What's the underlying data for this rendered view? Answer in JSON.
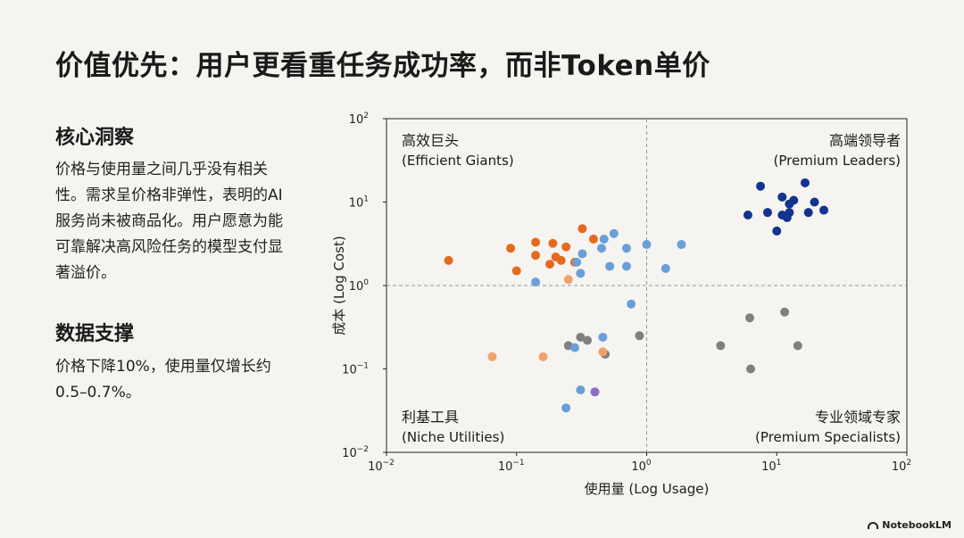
{
  "title": "价值优先：用户更看重任务成功率，而非Token单价",
  "insight": {
    "heading": "核心洞察",
    "body": "价格与使用量之间几乎没有相关性。需求呈价格非弹性，表明的AI服务尚未被商品化。用户愿意为能可靠解决高风险任务的模型支付显著溢价。"
  },
  "support": {
    "heading": "数据支撑",
    "body": "价格下降10%，使用量仅增长约0.5–0.7%。"
  },
  "brand": "NotebookLM",
  "chart_data": {
    "type": "scatter",
    "xlabel": "使用量 (Log Usage)",
    "ylabel": "成本 (Log Cost)",
    "xscale": "log",
    "yscale": "log",
    "xlim": [
      0.01,
      100
    ],
    "ylim": [
      0.01,
      100
    ],
    "x_ticks": [
      {
        "base": "10",
        "exp": "−2"
      },
      {
        "base": "10",
        "exp": "−1"
      },
      {
        "base": "10",
        "exp": "0"
      },
      {
        "base": "10",
        "exp": "1"
      },
      {
        "base": "10",
        "exp": "2"
      }
    ],
    "y_ticks": [
      {
        "base": "10",
        "exp": "−2"
      },
      {
        "base": "10",
        "exp": "−1"
      },
      {
        "base": "10",
        "exp": "0"
      },
      {
        "base": "10",
        "exp": "1"
      },
      {
        "base": "10",
        "exp": "2"
      }
    ],
    "divider_x": 1,
    "divider_y": 1,
    "quadrants": [
      {
        "position": "top-left",
        "zh": "高效巨头",
        "en": "(Efficient Giants)"
      },
      {
        "position": "top-right",
        "zh": "高端领导者",
        "en": "(Premium Leaders)"
      },
      {
        "position": "bottom-left",
        "zh": "利基工具",
        "en": "(Niche Utilities)"
      },
      {
        "position": "bottom-right",
        "zh": "专业领域专家",
        "en": "(Premium Specialists)"
      }
    ],
    "series": [
      {
        "color": "#e8681e",
        "points": [
          [
            0.03,
            2.0
          ],
          [
            0.09,
            2.8
          ],
          [
            0.1,
            1.5
          ],
          [
            0.14,
            3.3
          ],
          [
            0.14,
            2.3
          ],
          [
            0.18,
            1.8
          ],
          [
            0.19,
            3.2
          ],
          [
            0.2,
            2.2
          ],
          [
            0.22,
            2.0
          ],
          [
            0.24,
            2.9
          ],
          [
            0.28,
            1.9
          ],
          [
            0.32,
            4.8
          ],
          [
            0.39,
            3.6
          ]
        ]
      },
      {
        "color": "#6a9fd8",
        "points": [
          [
            0.14,
            1.1
          ],
          [
            0.29,
            1.9
          ],
          [
            0.31,
            1.4
          ],
          [
            0.32,
            2.4
          ],
          [
            0.45,
            2.8
          ],
          [
            0.47,
            3.6
          ],
          [
            0.52,
            1.7
          ],
          [
            0.56,
            4.2
          ],
          [
            0.7,
            1.7
          ],
          [
            0.7,
            2.8
          ],
          [
            0.76,
            0.6
          ],
          [
            1.0,
            3.1
          ],
          [
            1.4,
            1.6
          ],
          [
            1.85,
            3.1
          ]
        ]
      },
      {
        "color": "#12348f",
        "points": [
          [
            6.0,
            7.0
          ],
          [
            7.5,
            15.5
          ],
          [
            8.5,
            7.5
          ],
          [
            10.0,
            4.5
          ],
          [
            11.0,
            7.0
          ],
          [
            11.0,
            11.5
          ],
          [
            12.0,
            6.5
          ],
          [
            12.5,
            7.5
          ],
          [
            12.5,
            9.5
          ],
          [
            13.5,
            10.5
          ],
          [
            16.5,
            17.0
          ],
          [
            17.5,
            7.5
          ],
          [
            19.5,
            10.0
          ],
          [
            23.0,
            8.0
          ]
        ]
      },
      {
        "color": "#808080",
        "points": [
          [
            0.25,
            0.19
          ],
          [
            0.31,
            0.24
          ],
          [
            0.35,
            0.22
          ],
          [
            0.48,
            0.15
          ],
          [
            0.88,
            0.25
          ],
          [
            3.7,
            0.19
          ],
          [
            6.2,
            0.41
          ],
          [
            6.3,
            0.1
          ],
          [
            11.5,
            0.48
          ],
          [
            14.5,
            0.19
          ]
        ]
      },
      {
        "color": "#f0a26a",
        "points": [
          [
            0.065,
            0.14
          ],
          [
            0.16,
            0.14
          ],
          [
            0.25,
            1.18
          ],
          [
            0.46,
            0.16
          ]
        ]
      },
      {
        "color": "#6a9fd8",
        "points": [
          [
            0.24,
            0.034
          ],
          [
            0.28,
            0.18
          ],
          [
            0.31,
            0.056
          ],
          [
            0.46,
            0.24
          ]
        ]
      },
      {
        "color": "#8a6fc4",
        "points": [
          [
            0.4,
            0.053
          ]
        ]
      }
    ]
  }
}
